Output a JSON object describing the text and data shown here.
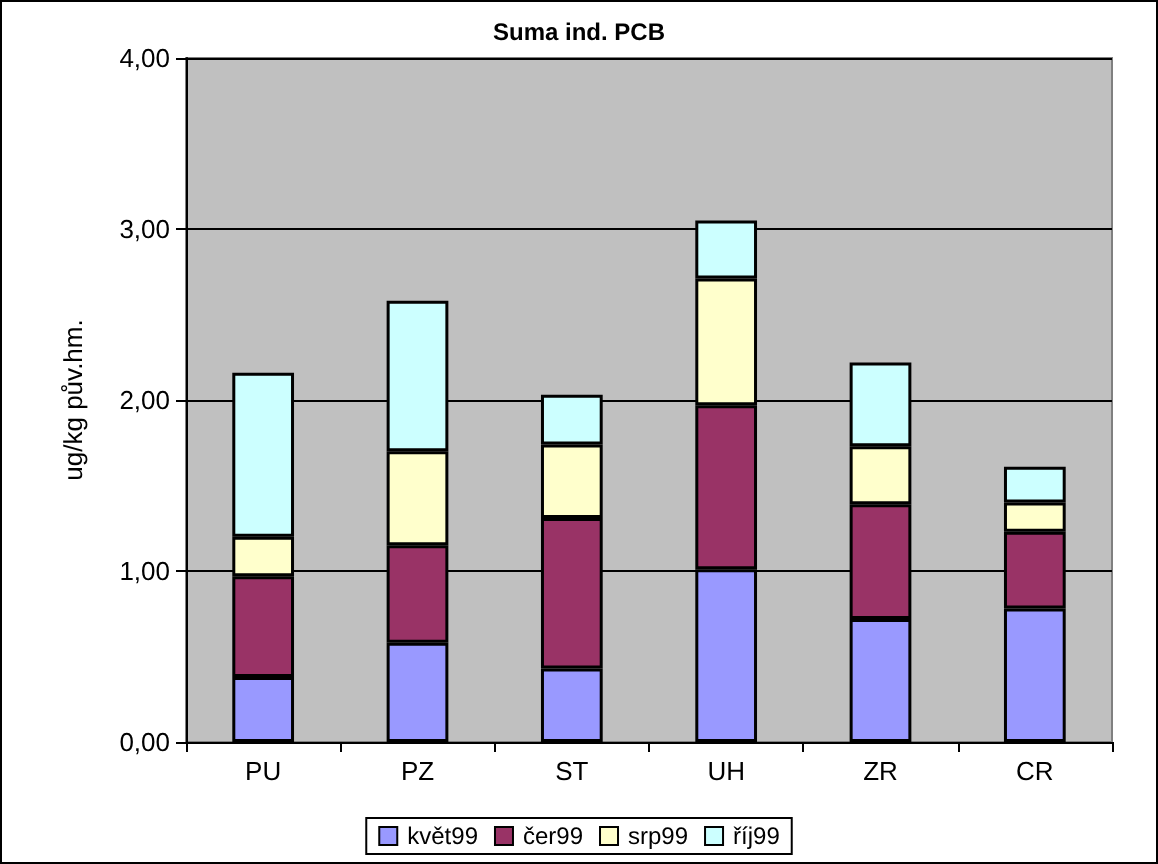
{
  "chart_data": {
    "type": "bar",
    "title": "Suma ind. PCB",
    "ylabel": "ug/kg pův.hm.",
    "stacked": true,
    "categories": [
      "PU",
      "PZ",
      "ST",
      "UH",
      "ZR",
      "CR"
    ],
    "series": [
      {
        "name": "květ99",
        "color": "#9999ff",
        "values": [
          0.38,
          0.58,
          0.43,
          1.01,
          0.72,
          0.78
        ]
      },
      {
        "name": "čer99",
        "color": "#993366",
        "values": [
          0.59,
          0.57,
          0.88,
          0.96,
          0.67,
          0.45
        ]
      },
      {
        "name": "srp99",
        "color": "#ffffcc",
        "values": [
          0.23,
          0.55,
          0.43,
          0.74,
          0.34,
          0.17
        ]
      },
      {
        "name": "říj99",
        "color": "#ccffff",
        "values": [
          0.96,
          0.88,
          0.29,
          0.34,
          0.49,
          0.21
        ]
      }
    ],
    "ylim": [
      0,
      4
    ],
    "yticks": [
      {
        "value": 0,
        "label": "0,00"
      },
      {
        "value": 1,
        "label": "1,00"
      },
      {
        "value": 2,
        "label": "2,00"
      },
      {
        "value": 3,
        "label": "3,00"
      },
      {
        "value": 4,
        "label": "4,00"
      }
    ],
    "grid": "y",
    "legend": "bottom"
  }
}
